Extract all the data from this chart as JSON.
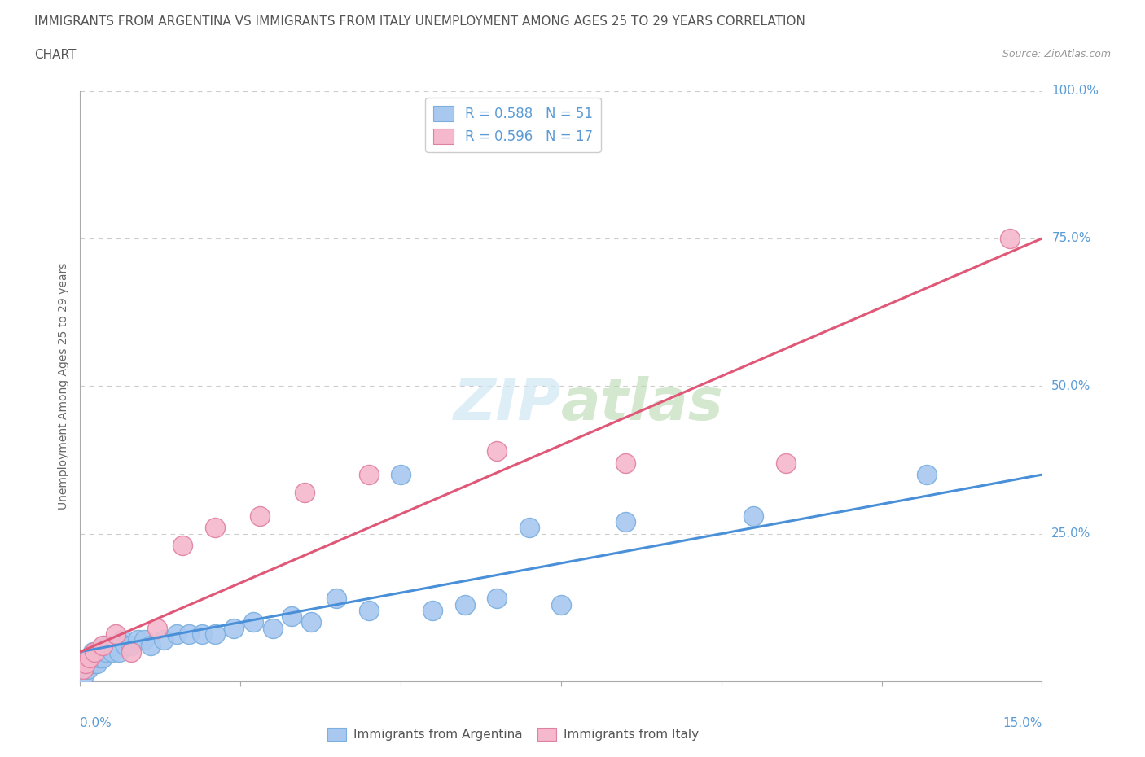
{
  "title_line1": "IMMIGRANTS FROM ARGENTINA VS IMMIGRANTS FROM ITALY UNEMPLOYMENT AMONG AGES 25 TO 29 YEARS CORRELATION",
  "title_line2": "CHART",
  "source": "Source: ZipAtlas.com",
  "ylabel": "Unemployment Among Ages 25 to 29 years",
  "argentina_R": 0.588,
  "argentina_N": 51,
  "italy_R": 0.596,
  "italy_N": 17,
  "argentina_color": "#a8c8f0",
  "argentina_edge_color": "#7aafdf",
  "italy_color": "#f5b8cc",
  "italy_edge_color": "#e080a0",
  "argentina_line_color": "#4a90d9",
  "italy_line_color": "#e05878",
  "watermark_color": "#d0e8f5",
  "ytick_color": "#5b9bd5",
  "title_color": "#555555",
  "grid_color": "#cccccc",
  "arg_x": [
    0.04,
    0.06,
    0.08,
    0.1,
    0.11,
    0.12,
    0.14,
    0.15,
    0.17,
    0.18,
    0.2,
    0.22,
    0.24,
    0.26,
    0.28,
    0.3,
    0.32,
    0.35,
    0.38,
    0.4,
    0.45,
    0.5,
    0.55,
    0.6,
    0.65,
    0.7,
    0.8,
    0.9,
    1.0,
    1.1,
    1.3,
    1.5,
    1.7,
    1.9,
    2.1,
    2.4,
    2.7,
    3.0,
    3.3,
    3.6,
    4.0,
    4.5,
    5.0,
    5.5,
    6.0,
    6.5,
    7.0,
    7.5,
    8.5,
    10.5,
    13.2
  ],
  "arg_y": [
    2,
    1,
    3,
    2,
    3,
    2,
    4,
    3,
    4,
    3,
    5,
    3,
    4,
    3,
    5,
    4,
    5,
    4,
    6,
    5,
    6,
    5,
    6,
    5,
    7,
    6,
    6,
    7,
    7,
    6,
    7,
    8,
    8,
    8,
    8,
    9,
    10,
    9,
    11,
    10,
    14,
    12,
    35,
    12,
    13,
    14,
    26,
    13,
    27,
    28,
    35
  ],
  "ita_x": [
    0.04,
    0.08,
    0.15,
    0.22,
    0.35,
    0.55,
    0.8,
    1.2,
    1.6,
    2.1,
    2.8,
    3.5,
    4.5,
    6.5,
    8.5,
    11.0,
    14.5
  ],
  "ita_y": [
    2,
    3,
    4,
    5,
    6,
    8,
    5,
    9,
    23,
    26,
    28,
    32,
    35,
    39,
    37,
    37,
    75
  ]
}
